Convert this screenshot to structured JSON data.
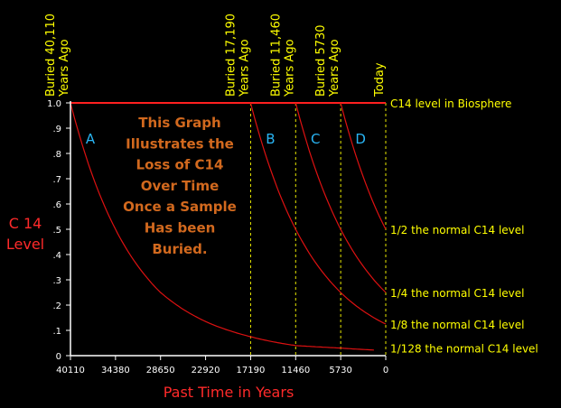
{
  "chart_data": {
    "type": "line",
    "title_lines": [
      "This Graph",
      "Illustrates the",
      "Loss of C14",
      "Over Time",
      "Once a Sample",
      "Has been",
      "Buried."
    ],
    "ylabel_lines": [
      "C 14",
      "Level"
    ],
    "xlabel": "Past Time in Years",
    "xlim": [
      40110,
      0
    ],
    "ylim": [
      0,
      1.0
    ],
    "x_ticks": [
      "40110",
      "34380",
      "28650",
      "22920",
      "17190",
      "11460",
      "5730",
      "0"
    ],
    "x_tick_values": [
      40110,
      34380,
      28650,
      22920,
      17190,
      11460,
      5730,
      0
    ],
    "y_ticks": [
      "0",
      ".1",
      ".2",
      ".3",
      ".4",
      ".5",
      ".6",
      ".7",
      ".8",
      ".9",
      "1.0"
    ],
    "y_tick_values": [
      0,
      0.1,
      0.2,
      0.3,
      0.4,
      0.5,
      0.6,
      0.7,
      0.8,
      0.9,
      1.0
    ],
    "reference_line": {
      "y": 1.0,
      "label": "C14 level in Biosphere"
    },
    "markers": [
      {
        "x": 40110,
        "lines": [
          "Buried 40,110",
          "Years Ago"
        ],
        "dashed": false
      },
      {
        "x": 17190,
        "lines": [
          "Buried 17,190",
          "Years Ago"
        ],
        "dashed": true
      },
      {
        "x": 11460,
        "lines": [
          "Buried 11,460",
          "Years Ago"
        ],
        "dashed": true
      },
      {
        "x": 5730,
        "lines": [
          "Buried 5730",
          "Years Ago"
        ],
        "dashed": true
      },
      {
        "x": 0,
        "lines": [
          "Today"
        ],
        "dashed": true
      }
    ],
    "right_labels": [
      {
        "y": 0.5,
        "text": "1/2 the normal C14 level"
      },
      {
        "y": 0.25,
        "text": "1/4 the normal C14 level"
      },
      {
        "y": 0.125,
        "text": "1/8 the normal C14 level"
      },
      {
        "y": 0.03,
        "text": "1/128 the normal C14 level"
      }
    ],
    "series": [
      {
        "name": "A",
        "x": [
          40110,
          34380,
          28650,
          22920,
          17190,
          11460,
          5730,
          1500
        ],
        "y": [
          1.0,
          0.5,
          0.25,
          0.135,
          0.075,
          0.04,
          0.03,
          0.022
        ]
      },
      {
        "name": "B",
        "x": [
          17190,
          11460,
          5730,
          0
        ],
        "y": [
          1.0,
          0.5,
          0.25,
          0.125
        ]
      },
      {
        "name": "C",
        "x": [
          11460,
          5730,
          0
        ],
        "y": [
          1.0,
          0.5,
          0.25
        ]
      },
      {
        "name": "D",
        "x": [
          5730,
          0
        ],
        "y": [
          1.0,
          0.5
        ]
      }
    ],
    "colors": {
      "background": "#000000",
      "axes": "#ffffff",
      "curve": "#dd1111",
      "reference": "#ff2020",
      "marker_line": "#e8e800",
      "title": "#d2691e",
      "series_label": "#29b6f6",
      "ylabel": "#ff2a2a",
      "xlabel": "#ff2a2a",
      "annotation": "#ffff00"
    },
    "grid": false,
    "legend": "none"
  }
}
